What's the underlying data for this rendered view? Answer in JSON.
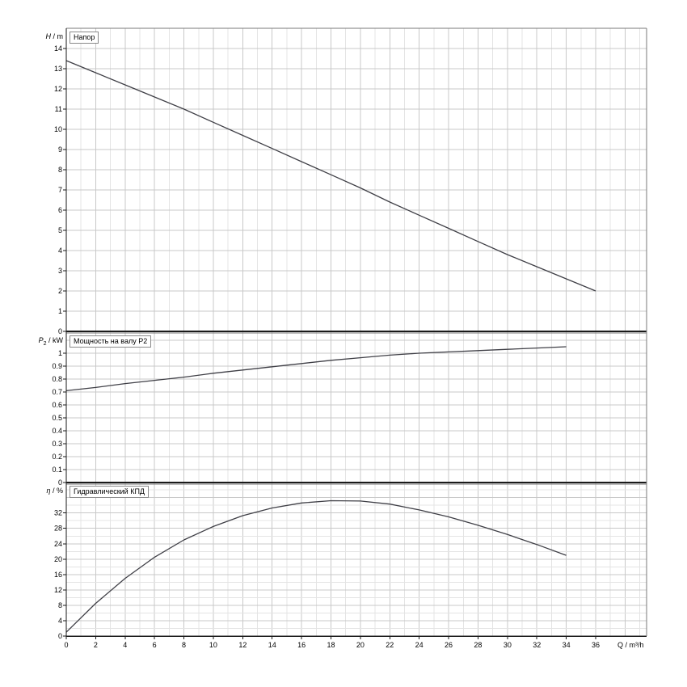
{
  "colors": {
    "background": "#ffffff",
    "grid_major": "#c8c8c8",
    "grid_minor": "#e4e4e4",
    "panel_border": "#7a7a7a",
    "axis": "#1a1a1a",
    "curve": "#3f3f46",
    "text": "#000000"
  },
  "x_axis": {
    "label": "Q / m³/h",
    "ticks": [
      0,
      2,
      4,
      6,
      8,
      10,
      12,
      14,
      16,
      18,
      20,
      22,
      24,
      26,
      28,
      30,
      32,
      34,
      36
    ],
    "data_max": 36,
    "grid_step": 2,
    "grid_minor_step": 1
  },
  "chart_data": [
    {
      "type": "line",
      "panel": "head",
      "title": "Напор",
      "axis_symbol": "H",
      "axis_sub": "",
      "axis_unit": " / m",
      "ylim": [
        0,
        15
      ],
      "yticks": [
        0,
        1,
        2,
        3,
        4,
        5,
        6,
        7,
        8,
        9,
        10,
        11,
        12,
        13,
        14
      ],
      "grid_step": 1,
      "grid_minor_step": 0,
      "x": [
        0,
        2,
        4,
        6,
        8,
        10,
        12,
        14,
        16,
        18,
        20,
        22,
        24,
        26,
        28,
        30,
        32,
        34,
        36
      ],
      "y": [
        13.4,
        12.8,
        12.2,
        11.6,
        11.0,
        10.35,
        9.7,
        9.05,
        8.4,
        7.75,
        7.1,
        6.4,
        5.75,
        5.1,
        4.45,
        3.8,
        3.2,
        2.6,
        2.0
      ]
    },
    {
      "type": "line",
      "panel": "power",
      "title": "Мощность на валу P2",
      "axis_symbol": "P",
      "axis_sub": "2",
      "axis_unit": " / kW",
      "ylim": [
        0,
        1.156
      ],
      "yticks": [
        0,
        0.1,
        0.2,
        0.3,
        0.4,
        0.5,
        0.6,
        0.7,
        0.8,
        0.9,
        1
      ],
      "grid_step": 0.1,
      "grid_minor_step": 0,
      "x": [
        0,
        2,
        4,
        6,
        8,
        10,
        12,
        14,
        16,
        18,
        20,
        22,
        24,
        26,
        28,
        30,
        32,
        34
      ],
      "y": [
        0.71,
        0.735,
        0.765,
        0.79,
        0.815,
        0.845,
        0.87,
        0.895,
        0.92,
        0.945,
        0.965,
        0.985,
        1.0,
        1.01,
        1.02,
        1.03,
        1.04,
        1.05
      ]
    },
    {
      "type": "line",
      "panel": "efficiency",
      "title": "Гидравлический КПД",
      "axis_symbol": "η",
      "axis_sub": "",
      "axis_unit": " / %",
      "ylim": [
        0,
        39.5
      ],
      "yticks": [
        0,
        4,
        8,
        12,
        16,
        20,
        24,
        28,
        32
      ],
      "grid_step": 4,
      "grid_minor_step": 2,
      "x": [
        0,
        2,
        4,
        6,
        8,
        10,
        12,
        14,
        16,
        18,
        20,
        22,
        24,
        26,
        28,
        30,
        32,
        34
      ],
      "y": [
        1,
        8.5,
        15,
        20.5,
        25,
        28.5,
        31.3,
        33.3,
        34.6,
        35.2,
        35.1,
        34.3,
        32.8,
        31,
        28.8,
        26.4,
        23.8,
        21
      ]
    }
  ]
}
